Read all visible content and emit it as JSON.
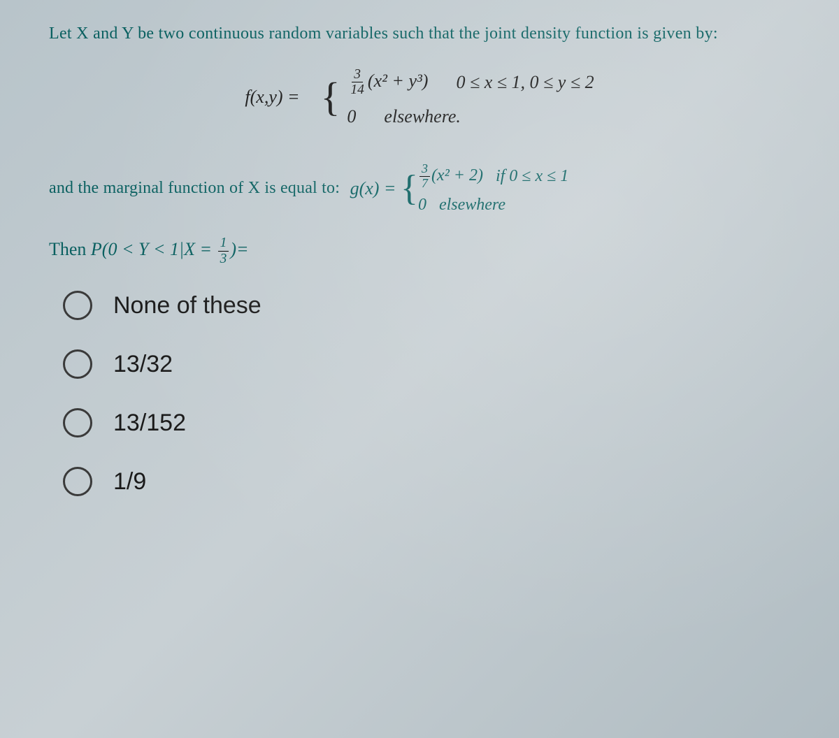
{
  "intro": "Let X and Y be two continuous random variables such that the joint density function is given by:",
  "formula1": {
    "lhs": "f(x,y) = ",
    "case1_expr_frac_num": "3",
    "case1_expr_frac_den": "14",
    "case1_expr_rest": "(x² + y³)",
    "case1_cond": "0 ≤ x ≤ 1,  0 ≤ y ≤ 2",
    "case2_expr": "0",
    "case2_cond": "elsewhere."
  },
  "marginal": {
    "text": "and the marginal function of X is equal to:",
    "lhs": "g(x) =",
    "case1_frac_num": "3",
    "case1_frac_den": "7",
    "case1_rest": "(x² + 2)",
    "case1_cond": "if 0 ≤ x ≤ 1",
    "case2_expr": "0",
    "case2_cond": "elsewhere"
  },
  "then": {
    "prefix": "Then ",
    "prob": "P(0 < Y < 1|X = ",
    "frac_num": "1",
    "frac_den": "3",
    "suffix": ")="
  },
  "options": [
    "None of these",
    "13/32",
    "13/152",
    "1/9"
  ],
  "colors": {
    "text_teal": "#0a6060",
    "body_text": "#1a1a1a",
    "radio_border": "#3a3a3a",
    "background_start": "#b8c4ca",
    "background_end": "#b0bcc2"
  },
  "typography": {
    "intro_fontsize": 24,
    "formula_fontsize": 26,
    "option_fontsize": 34
  }
}
